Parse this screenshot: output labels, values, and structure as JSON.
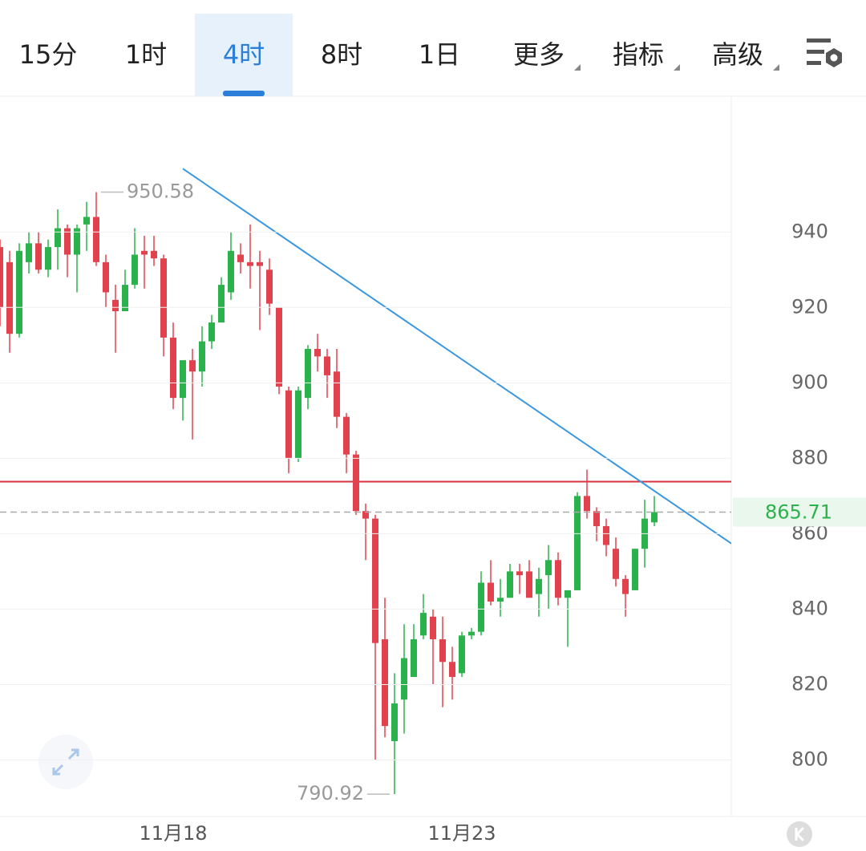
{
  "tabs": [
    "15分",
    "1时",
    "4时",
    "8时",
    "1日",
    "更多",
    "指标",
    "高级"
  ],
  "active_tab": 2,
  "chart_data": {
    "type": "candlestick",
    "open": [
      936,
      932,
      913,
      932,
      937,
      930,
      936,
      941,
      934,
      942,
      944,
      932,
      922,
      919,
      926,
      935,
      935,
      933,
      912,
      896,
      906,
      903,
      911,
      916,
      924,
      934,
      932,
      932,
      930,
      920,
      898,
      880,
      896,
      909,
      907,
      903,
      891,
      881,
      866,
      864,
      832,
      805,
      816,
      822,
      833,
      838,
      832,
      826,
      823,
      833,
      834,
      847,
      842,
      843,
      850,
      850,
      844,
      849,
      853,
      843,
      845,
      870,
      866,
      862,
      856,
      848,
      845,
      856,
      863
    ],
    "high": [
      938,
      935,
      937,
      940,
      940,
      938,
      946,
      942,
      942,
      948,
      950.58,
      934,
      926,
      930,
      941,
      939,
      939,
      934,
      916,
      906,
      909,
      915,
      918,
      928,
      940,
      937,
      942,
      935,
      933,
      920,
      899,
      899,
      910,
      913,
      909,
      909,
      892,
      882,
      868,
      865,
      843,
      823,
      836,
      836,
      844,
      840,
      838,
      830,
      834,
      835,
      850,
      853,
      848,
      852,
      852,
      853,
      851,
      857,
      855,
      845,
      871,
      877,
      867,
      864,
      859,
      849,
      856,
      869,
      870
    ],
    "low": [
      915,
      908,
      912,
      929,
      929,
      928,
      930,
      928,
      924,
      935,
      931,
      920,
      908,
      919,
      925,
      925,
      931,
      907,
      893,
      890,
      885,
      899,
      909,
      916,
      922,
      929,
      925,
      914,
      918,
      897,
      876,
      879,
      893,
      903,
      896,
      888,
      876,
      865,
      853,
      800,
      806,
      790.92,
      807,
      822,
      832,
      820,
      814,
      816,
      822,
      832,
      833,
      841,
      838,
      843,
      844,
      843,
      838,
      840,
      841,
      830,
      845,
      864,
      858,
      854,
      846,
      838,
      845,
      851,
      862
    ],
    "close": [
      920,
      913,
      935,
      937,
      930,
      936,
      941,
      934,
      941,
      944,
      932,
      924,
      919,
      926,
      934,
      934,
      933,
      912,
      896,
      906,
      903,
      911,
      916,
      926,
      935,
      932,
      931,
      931,
      921,
      899,
      880,
      898,
      909,
      907,
      902,
      891,
      881,
      866,
      864,
      831,
      809,
      815,
      827,
      832,
      839,
      832,
      826,
      822,
      833,
      834,
      847,
      842,
      843,
      850,
      849,
      843,
      848,
      853,
      843,
      845,
      870,
      866,
      862,
      857,
      848,
      844,
      856,
      864,
      865.71
    ],
    "up_color": "#2bb24c",
    "down_color": "#e2424d",
    "ylim": [
      785,
      976
    ],
    "yticks": [
      800,
      820,
      840,
      860,
      880,
      900,
      920,
      940
    ],
    "xticks": [
      {
        "value": 18,
        "label": "11月18"
      },
      {
        "value": 48,
        "label": "11月23"
      }
    ],
    "trendline": {
      "x": [
        19,
        76
      ],
      "values": [
        956.8,
        857.4
      ],
      "color": "#3a97e0"
    },
    "level_line": {
      "value": 873.8,
      "color": "#d8343f"
    },
    "grid": true
  }
}
